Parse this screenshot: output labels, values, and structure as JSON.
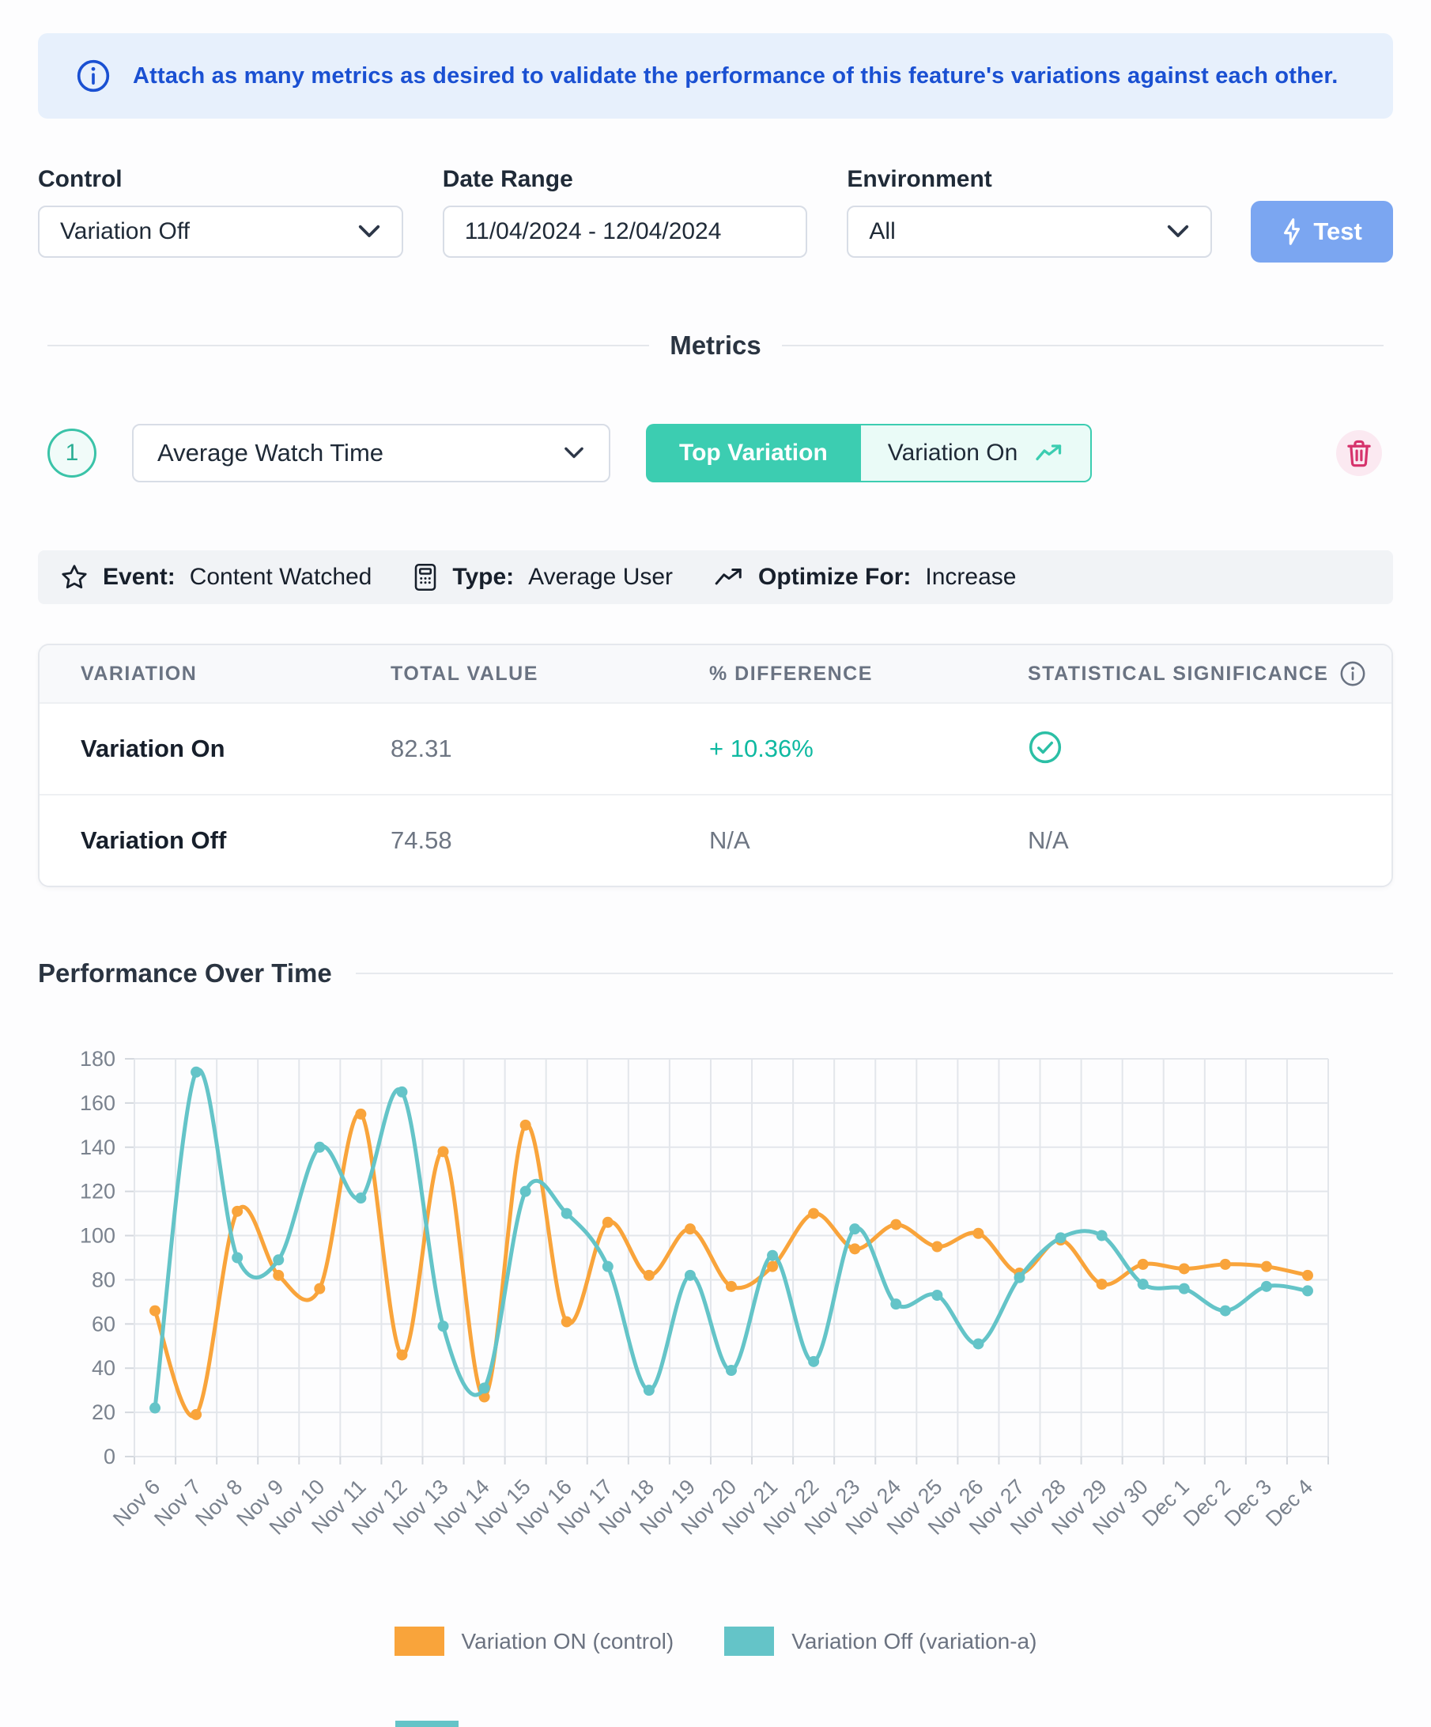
{
  "banner": {
    "text": "Attach as many metrics as desired to validate the performance of this feature's variations against each other."
  },
  "filters": {
    "control": {
      "label": "Control",
      "value": "Variation Off"
    },
    "date_range": {
      "label": "Date Range",
      "value": "11/04/2024 - 12/04/2024"
    },
    "environment": {
      "label": "Environment",
      "value": "All"
    },
    "test_button_label": "Test"
  },
  "metrics_section": {
    "divider_label": "Metrics",
    "metric": {
      "index": "1",
      "name": "Average Watch Time",
      "top_variation_label": "Top Variation",
      "top_variation_value": "Variation On",
      "event_label": "Event:",
      "event_value": "Content Watched",
      "type_label": "Type:",
      "type_value": "Average User",
      "optimize_label": "Optimize For:",
      "optimize_value": "Increase"
    }
  },
  "results_table": {
    "columns": [
      "Variation",
      "Total Value",
      "% Difference",
      "Statistical Significance"
    ],
    "rows": [
      {
        "variation": "Variation On",
        "total_value": "82.31",
        "difference": "+ 10.36%",
        "significance": "check"
      },
      {
        "variation": "Variation Off",
        "total_value": "74.58",
        "difference": "N/A",
        "significance": "N/A"
      }
    ]
  },
  "chart_section": {
    "title": "Performance Over Time"
  },
  "chart_data": {
    "type": "line",
    "title": "Performance Over Time",
    "x": [
      "Nov 6",
      "Nov 7",
      "Nov 8",
      "Nov 9",
      "Nov 10",
      "Nov 11",
      "Nov 12",
      "Nov 13",
      "Nov 14",
      "Nov 15",
      "Nov 16",
      "Nov 17",
      "Nov 18",
      "Nov 19",
      "Nov 20",
      "Nov 21",
      "Nov 22",
      "Nov 23",
      "Nov 24",
      "Nov 25",
      "Nov 26",
      "Nov 27",
      "Nov 28",
      "Nov 29",
      "Nov 30",
      "Dec 1",
      "Dec 2",
      "Dec 3",
      "Dec 4"
    ],
    "series": [
      {
        "name": "Variation ON (control)",
        "color": "#f9a43b",
        "values": [
          66,
          19,
          111,
          82,
          76,
          155,
          46,
          138,
          27,
          150,
          61,
          106,
          82,
          103,
          77,
          86,
          110,
          94,
          105,
          95,
          101,
          83,
          98,
          78,
          87,
          85,
          87,
          86,
          82
        ]
      },
      {
        "name": "Variation Off (variation-a)",
        "color": "#64c4c8",
        "values": [
          22,
          174,
          90,
          89,
          140,
          117,
          165,
          59,
          31,
          120,
          110,
          86,
          30,
          82,
          39,
          91,
          43,
          103,
          69,
          73,
          51,
          81,
          99,
          100,
          78,
          76,
          66,
          77,
          75
        ]
      }
    ],
    "ylim": [
      0,
      180
    ],
    "ytick_step": 20,
    "grid": true,
    "legend_position": "bottom",
    "xlabel": "",
    "ylabel": ""
  },
  "icons": {
    "info-icon": "circled i",
    "chevron-down-icon": "v",
    "lightning-icon": "bolt",
    "trend-up-icon": "zigzag arrow up-right",
    "trash-icon": "trash can outline",
    "star-icon": "outline star",
    "calculator-icon": "calculator",
    "check-circle-icon": "circled check"
  },
  "colors": {
    "banner_bg": "#e7f0fc",
    "banner_text": "#1a50d2",
    "accent_teal": "#3ccdb1",
    "test_button": "#7ba6f1",
    "danger_pink": "#d6336c",
    "positive": "#0fb9a1",
    "series_orange": "#f9a43b",
    "series_teal": "#64c4c8"
  }
}
